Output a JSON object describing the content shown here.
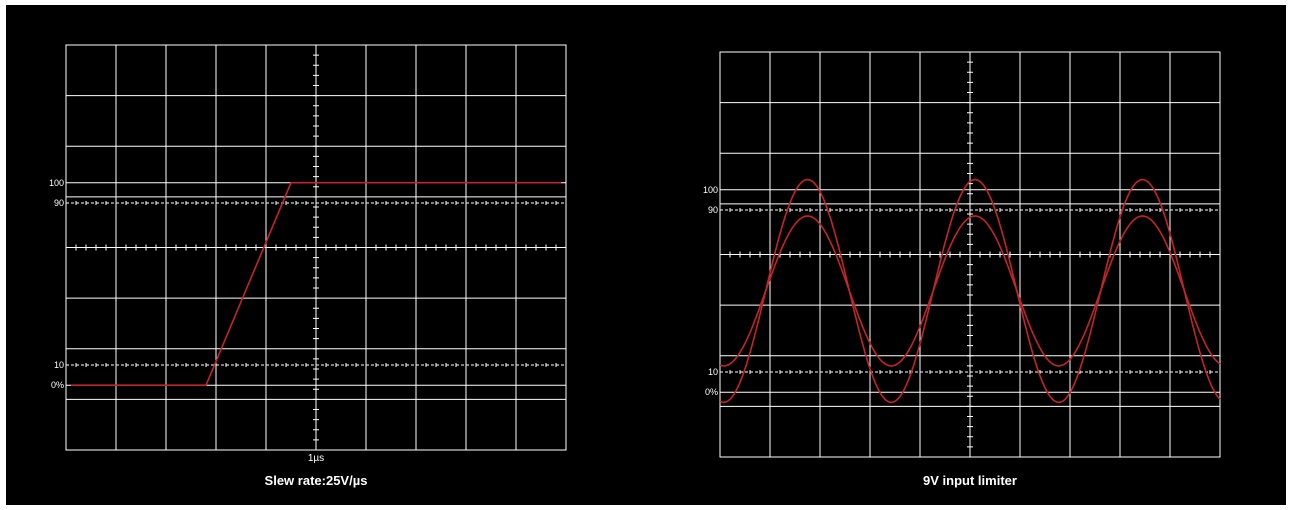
{
  "colors": {
    "background": "#000000",
    "grid": "#ffffff",
    "trace": "#c0262b"
  },
  "chart_data": [
    {
      "type": "line",
      "title": "Slew rate:25V/µs",
      "grid": true,
      "x_divisions": 10,
      "y_divisions": 8,
      "xlim": [
        0,
        10
      ],
      "ylim": [
        -32,
        168
      ],
      "y_tick_labels": [
        {
          "value": 100,
          "label": "100"
        },
        {
          "value": 90,
          "label": "90"
        },
        {
          "value": 10,
          "label": "10"
        },
        {
          "value": 0,
          "label": "0%"
        }
      ],
      "x_tick_labels": [
        {
          "value": 5,
          "label": "1µs"
        }
      ],
      "series": [
        {
          "x": [
            0.1,
            2.8,
            4.5,
            9.9
          ],
          "y": [
            0,
            0,
            100,
            100
          ]
        }
      ]
    },
    {
      "type": "line",
      "title": "9V input limiter",
      "grid": true,
      "x_divisions": 10,
      "y_divisions": 8,
      "xlim": [
        0,
        10
      ],
      "ylim": [
        -32,
        168
      ],
      "y_tick_labels": [
        {
          "value": 100,
          "label": "100"
        },
        {
          "value": 90,
          "label": "90"
        },
        {
          "value": 10,
          "label": "10"
        },
        {
          "value": 0,
          "label": "0%"
        }
      ],
      "series": [
        {
          "amplitude": 55,
          "offset": 50,
          "period": 3.35,
          "peak_x": 1.75
        },
        {
          "amplitude": 37,
          "offset": 50,
          "period": 3.35,
          "peak_x": 1.75
        }
      ]
    }
  ]
}
